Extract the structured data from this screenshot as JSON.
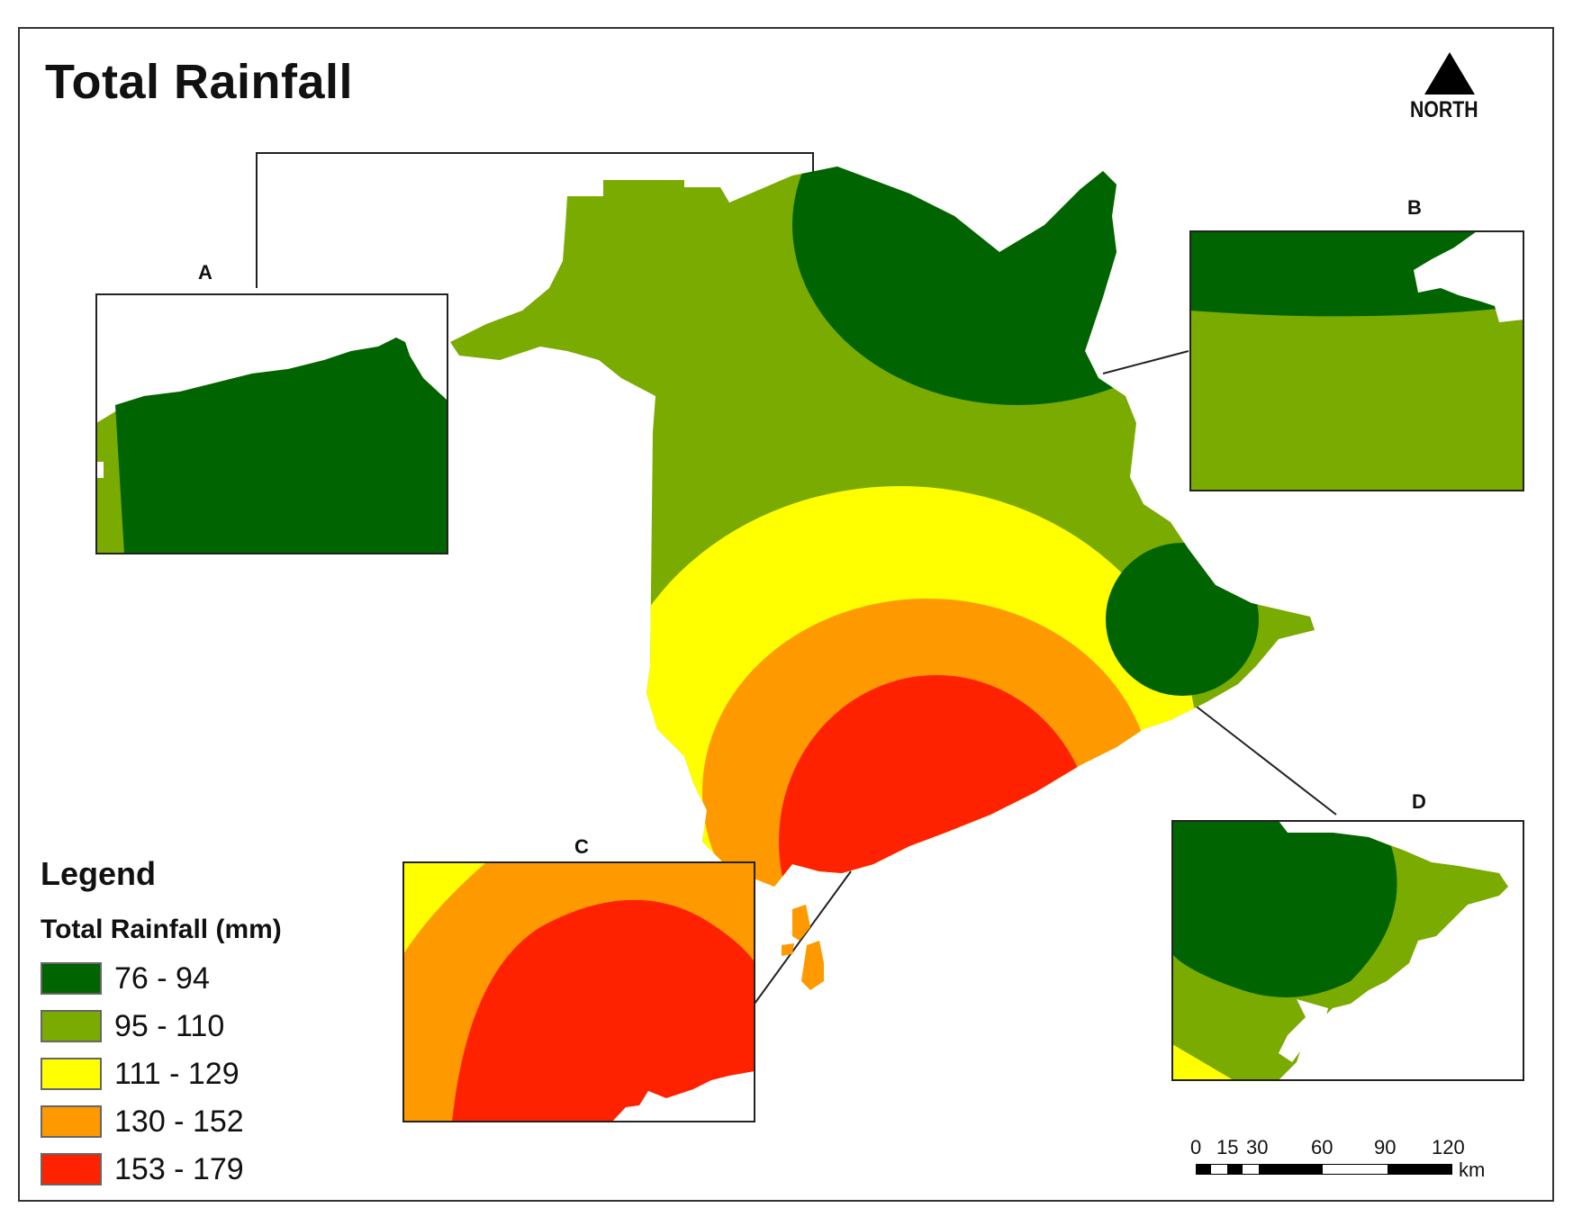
{
  "title": "Total Rainfall",
  "north_label": "NORTH",
  "insets": [
    {
      "id": "A",
      "label": "A"
    },
    {
      "id": "B",
      "label": "B"
    },
    {
      "id": "C",
      "label": "C"
    },
    {
      "id": "D",
      "label": "D"
    }
  ],
  "legend": {
    "title": "Legend",
    "subtitle": "Total Rainfall (mm)",
    "classes": [
      {
        "label": "76 - 94",
        "color": "#006400"
      },
      {
        "label": "95 - 110",
        "color": "#7aab00"
      },
      {
        "label": "111 - 129",
        "color": "#ffff00"
      },
      {
        "label": "130 - 152",
        "color": "#ff9900"
      },
      {
        "label": "153 - 179",
        "color": "#ff2200"
      }
    ]
  },
  "scale_bar": {
    "ticks": [
      "0",
      "15",
      "30",
      "60",
      "90",
      "120"
    ],
    "unit": "km"
  }
}
